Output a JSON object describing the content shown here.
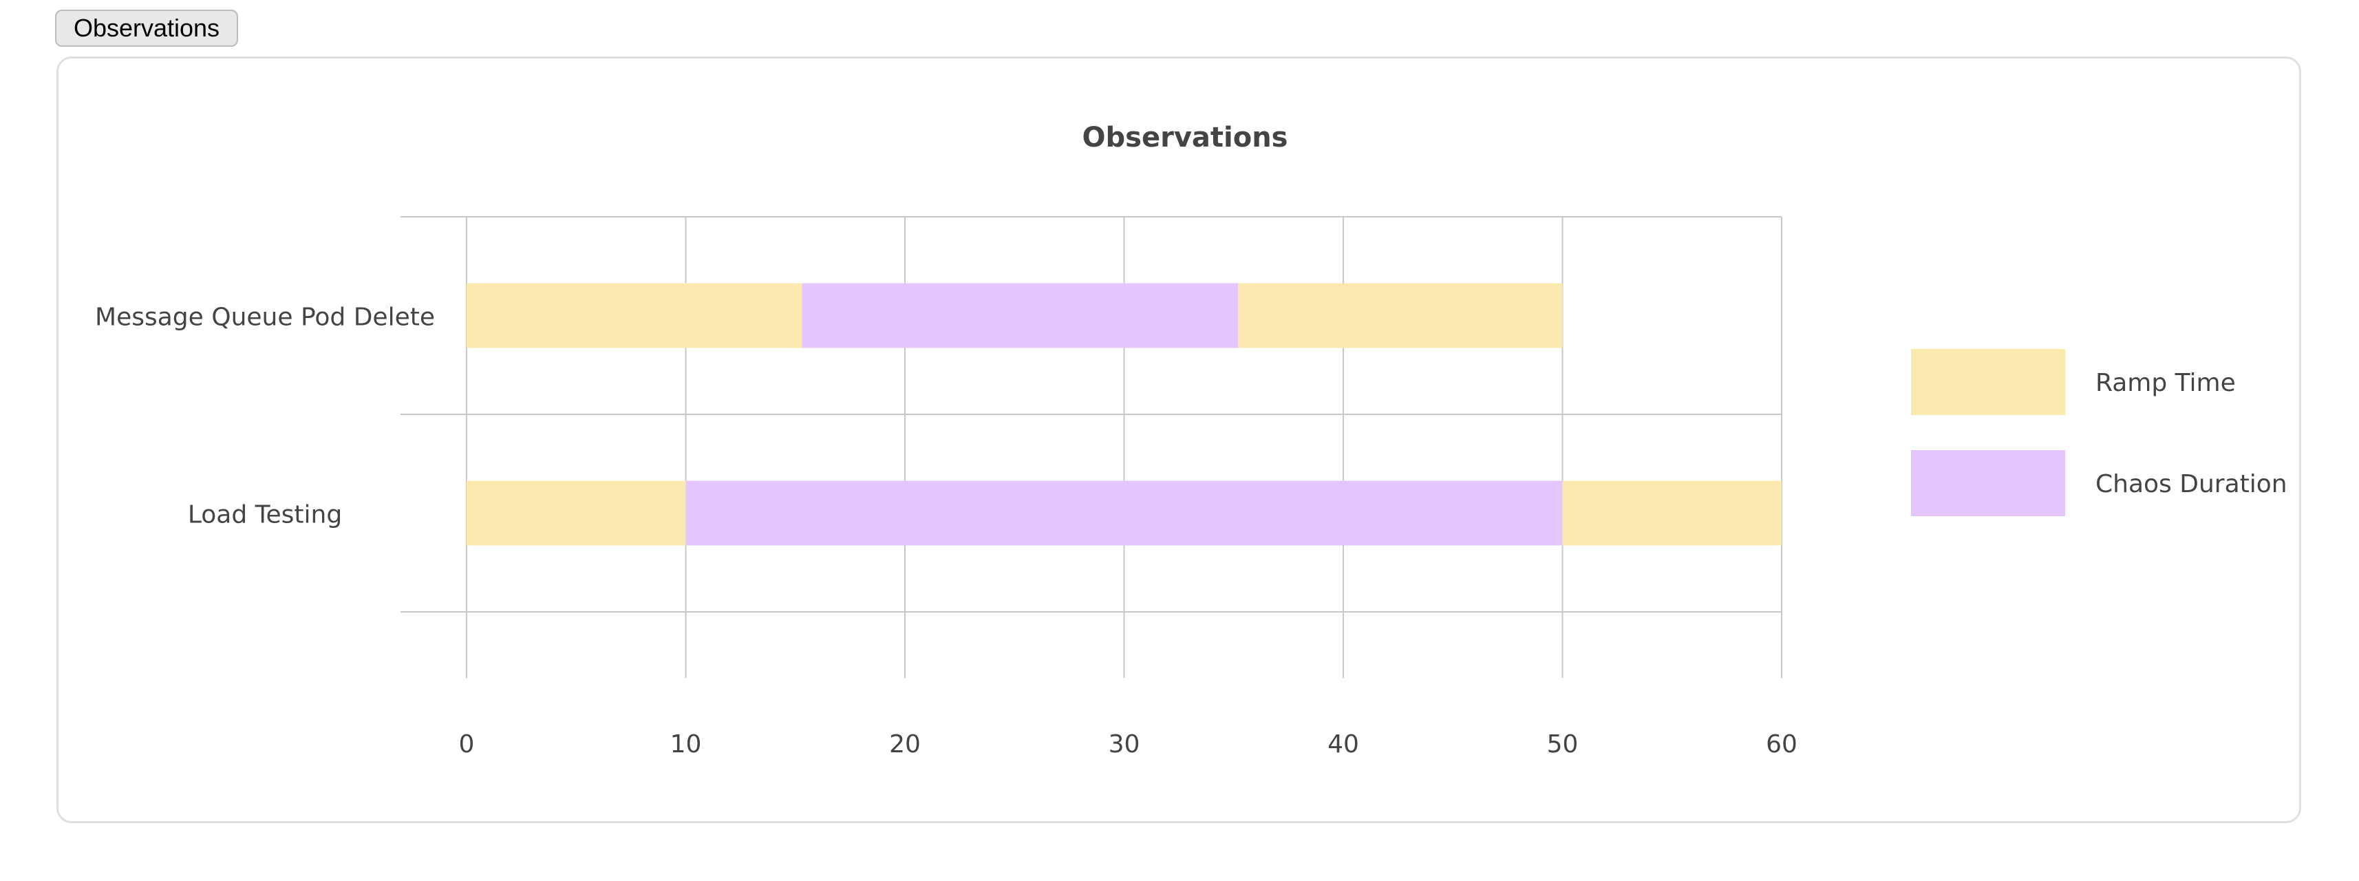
{
  "tab": {
    "label": "Observations"
  },
  "chart_data": {
    "type": "bar",
    "orientation": "horizontal",
    "stacked": true,
    "title": "Observations",
    "categories": [
      "Message Queue Pod Delete",
      "Load Testing"
    ],
    "series": [
      {
        "name": "Ramp Time",
        "color": "#fbe9b0",
        "segments": [
          [
            0,
            15.3
          ],
          [
            0,
            10
          ]
        ]
      },
      {
        "name": "Chaos Duration",
        "color": "#e4c6fc",
        "segments": [
          [
            15.3,
            35.2
          ],
          [
            10,
            50
          ]
        ]
      },
      {
        "name": "Ramp Time",
        "color": "#fbe9b0",
        "segments": [
          [
            35.2,
            50
          ],
          [
            50,
            60
          ]
        ]
      }
    ],
    "x_ticks": [
      "0",
      "10",
      "20",
      "30",
      "40",
      "50",
      "60"
    ],
    "xlim": [
      0,
      60
    ],
    "grid": true,
    "legend": {
      "position": "right",
      "entries": [
        {
          "label": "Ramp Time",
          "color": "#fbe9b0"
        },
        {
          "label": "Chaos Duration",
          "color": "#e4c6fc"
        }
      ]
    }
  }
}
